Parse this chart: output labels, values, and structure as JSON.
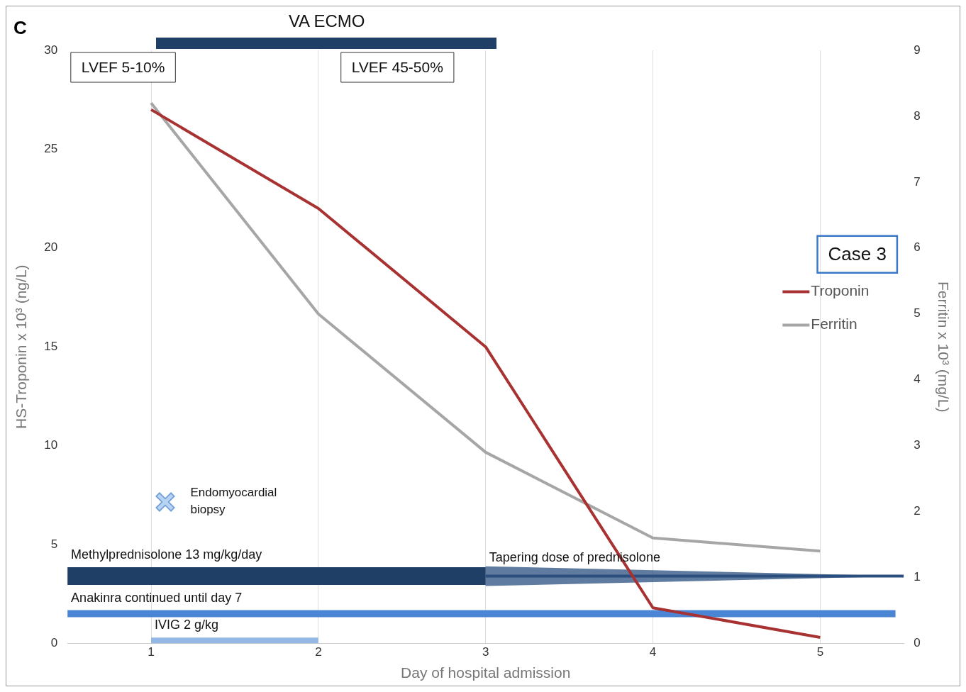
{
  "chart_data": {
    "type": "line",
    "xlabel": "Day of hospital admission",
    "ylabel": "HS-Troponin x 10³ (ng/L)",
    "y2label": "Ferritin x 10³ (mg/L)",
    "x": [
      1,
      2,
      3,
      4,
      5
    ],
    "xlim": [
      0.5,
      5.5
    ],
    "xticks": [
      1,
      2,
      3,
      4,
      5
    ],
    "ylim": [
      0,
      30
    ],
    "yticks": [
      0,
      5,
      10,
      15,
      20,
      25,
      30
    ],
    "y2lim": [
      0,
      9
    ],
    "y2ticks": [
      0,
      1,
      2,
      3,
      4,
      5,
      6,
      7,
      8,
      9
    ],
    "series": [
      {
        "name": "Troponin",
        "color": "#a83232",
        "values": [
          27,
          22,
          15,
          1.8,
          0.3
        ]
      },
      {
        "name": "Ferritin",
        "color": "#a6a6a6",
        "values": [
          8.2,
          5.0,
          2.9,
          1.6,
          1.4
        ],
        "axis": "y2"
      },
      {
        "name": "Methylprednisolone 13 mg/kg/day",
        "color": "#1f3f66",
        "x": [
          0.5,
          3
        ],
        "values": [
          3.4,
          3.4
        ]
      },
      {
        "name": "Tapering dose of prednisolone",
        "color": "#2a4f7f",
        "x": [
          3,
          5.5
        ],
        "values": [
          3.4,
          3.4
        ],
        "lower": [
          2.9,
          3.4
        ],
        "upper": [
          3.9,
          3.4
        ]
      },
      {
        "name": "Anakinra continued until day 7",
        "color": "#4a86d4",
        "x": [
          0.5,
          5.45
        ],
        "values": [
          1.5,
          1.5
        ]
      },
      {
        "name": "IVIG 2 g/kg",
        "color": "#93b8e6",
        "x": [
          1,
          2
        ],
        "values": [
          0.15,
          0.15
        ]
      }
    ],
    "annotations": [
      "C",
      "Case 3",
      "VA ECMO",
      "LVEF 5-10%",
      "LVEF 45-50%",
      "Endomyocardial biopsy"
    ],
    "grid": "x",
    "legend": "right",
    "marker": "none",
    "line_style": "solid"
  }
}
